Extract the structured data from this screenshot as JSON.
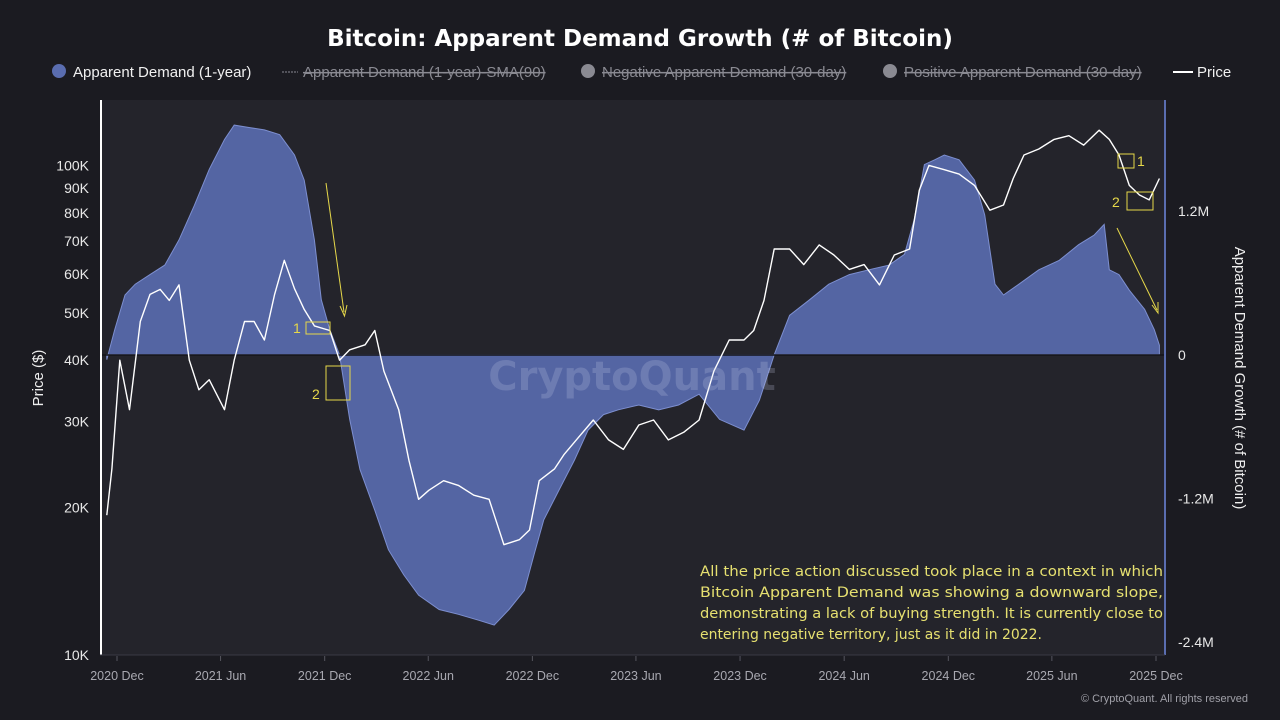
{
  "chart_data": {
    "type": "area+line",
    "title": "Bitcoin: Apparent Demand Growth (# of Bitcoin)",
    "legend": {
      "placement": "top",
      "items": [
        {
          "label": "Apparent Demand (1-year)",
          "color": "#5a6db0",
          "active": true,
          "marker": "dot"
        },
        {
          "label": "Apparent Demand (1-year)-SMA(90)",
          "color": "#8a8a92",
          "active": false,
          "marker": "dash"
        },
        {
          "label": "Negative Apparent Demand (30-day)",
          "color": "#8a8a92",
          "active": false,
          "marker": "dot"
        },
        {
          "label": "Positive Apparent Demand (30-day)",
          "color": "#8a8a92",
          "active": false,
          "marker": "dot"
        },
        {
          "label": "Price",
          "color": "#ffffff",
          "active": true,
          "marker": "line"
        }
      ]
    },
    "x_axis": {
      "type": "date",
      "ticks": [
        "2020 Dec",
        "2021 Jun",
        "2021 Dec",
        "2022 Jun",
        "2022 Dec",
        "2023 Jun",
        "2023 Dec",
        "2024 Jun",
        "2024 Dec",
        "2025 Jun",
        "2025 Dec"
      ],
      "tick_dates": [
        "2020-12-01",
        "2021-06-01",
        "2021-12-01",
        "2022-06-01",
        "2022-12-01",
        "2023-06-01",
        "2023-12-01",
        "2024-06-01",
        "2024-12-01",
        "2025-06-01",
        "2025-12-01"
      ]
    },
    "y_left": {
      "label": "Price ($)",
      "scale": "log",
      "range": [
        10000,
        136000
      ],
      "ticks": [
        {
          "v": 10000,
          "t": "10K"
        },
        {
          "v": 20000,
          "t": "20K"
        },
        {
          "v": 30000,
          "t": "30K"
        },
        {
          "v": 40000,
          "t": "40K"
        },
        {
          "v": 50000,
          "t": "50K"
        },
        {
          "v": 60000,
          "t": "60K"
        },
        {
          "v": 70000,
          "t": "70K"
        },
        {
          "v": 80000,
          "t": "80K"
        },
        {
          "v": 90000,
          "t": "90K"
        },
        {
          "v": 100000,
          "t": "100K"
        }
      ]
    },
    "y_right": {
      "label": "Apparent Demand Growth (# of Bitcoin)",
      "scale": "linear",
      "range": [
        -2510000,
        2130000
      ],
      "ticks": [
        {
          "v": 1200000,
          "t": "1.2M"
        },
        {
          "v": 0,
          "t": "0"
        },
        {
          "v": -1200000,
          "t": "-1.2M"
        },
        {
          "v": -2400000,
          "t": "-2.4M"
        }
      ]
    },
    "grid": false,
    "series": [
      {
        "name": "Apparent Demand (1-year)",
        "type": "area",
        "axis": "right",
        "color": "#5a6db0",
        "points": [
          [
            "2020-11-13",
            -40000
          ],
          [
            "2020-11-27",
            210000
          ],
          [
            "2020-12-15",
            500000
          ],
          [
            "2021-01-02",
            590000
          ],
          [
            "2021-01-28",
            670000
          ],
          [
            "2021-02-23",
            750000
          ],
          [
            "2021-03-20",
            960000
          ],
          [
            "2021-04-16",
            1250000
          ],
          [
            "2021-05-12",
            1550000
          ],
          [
            "2021-06-08",
            1800000
          ],
          [
            "2021-06-25",
            1920000
          ],
          [
            "2021-07-21",
            1900000
          ],
          [
            "2021-08-17",
            1880000
          ],
          [
            "2021-09-13",
            1840000
          ],
          [
            "2021-10-09",
            1670000
          ],
          [
            "2021-10-26",
            1460000
          ],
          [
            "2021-11-13",
            960000
          ],
          [
            "2021-11-25",
            460000
          ],
          [
            "2021-12-10",
            210000
          ],
          [
            "2021-12-27",
            0
          ],
          [
            "2022-01-14",
            -540000
          ],
          [
            "2022-02-01",
            -960000
          ],
          [
            "2022-02-27",
            -1300000
          ],
          [
            "2022-03-23",
            -1630000
          ],
          [
            "2022-04-19",
            -1840000
          ],
          [
            "2022-05-15",
            -2010000
          ],
          [
            "2022-06-20",
            -2130000
          ],
          [
            "2022-07-24",
            -2170000
          ],
          [
            "2022-08-29",
            -2220000
          ],
          [
            "2022-09-25",
            -2260000
          ],
          [
            "2022-10-21",
            -2130000
          ],
          [
            "2022-11-17",
            -1970000
          ],
          [
            "2022-12-04",
            -1670000
          ],
          [
            "2022-12-21",
            -1380000
          ],
          [
            "2023-01-17",
            -1130000
          ],
          [
            "2023-02-13",
            -880000
          ],
          [
            "2023-03-09",
            -630000
          ],
          [
            "2023-04-05",
            -500000
          ],
          [
            "2023-05-01",
            -460000
          ],
          [
            "2023-06-06",
            -420000
          ],
          [
            "2023-07-11",
            -460000
          ],
          [
            "2023-08-15",
            -420000
          ],
          [
            "2023-09-20",
            -330000
          ],
          [
            "2023-10-26",
            -540000
          ],
          [
            "2023-12-08",
            -630000
          ],
          [
            "2024-01-04",
            -380000
          ],
          [
            "2024-01-30",
            0
          ],
          [
            "2024-02-26",
            330000
          ],
          [
            "2024-04-01",
            460000
          ],
          [
            "2024-05-05",
            590000
          ],
          [
            "2024-06-10",
            670000
          ],
          [
            "2024-07-14",
            710000
          ],
          [
            "2024-08-19",
            750000
          ],
          [
            "2024-09-15",
            840000
          ],
          [
            "2024-10-02",
            1130000
          ],
          [
            "2024-10-20",
            1590000
          ],
          [
            "2024-11-07",
            1630000
          ],
          [
            "2024-11-24",
            1670000
          ],
          [
            "2024-12-20",
            1630000
          ],
          [
            "2025-01-16",
            1460000
          ],
          [
            "2025-02-03",
            1170000
          ],
          [
            "2025-02-21",
            590000
          ],
          [
            "2025-03-08",
            500000
          ],
          [
            "2025-04-04",
            590000
          ],
          [
            "2025-05-09",
            710000
          ],
          [
            "2025-06-14",
            790000
          ],
          [
            "2025-07-18",
            920000
          ],
          [
            "2025-08-14",
            1000000
          ],
          [
            "2025-09-01",
            1090000
          ],
          [
            "2025-09-10",
            710000
          ],
          [
            "2025-09-27",
            670000
          ],
          [
            "2025-10-15",
            540000
          ],
          [
            "2025-11-11",
            380000
          ],
          [
            "2025-11-28",
            210000
          ],
          [
            "2025-12-07",
            80000
          ]
        ]
      },
      {
        "name": "Price",
        "type": "line",
        "axis": "left",
        "color": "#ffffff",
        "points": [
          [
            "2020-11-13",
            19300
          ],
          [
            "2020-11-22",
            24000
          ],
          [
            "2020-12-06",
            40000
          ],
          [
            "2020-12-23",
            31700
          ],
          [
            "2021-01-11",
            48000
          ],
          [
            "2021-01-28",
            54500
          ],
          [
            "2021-02-15",
            55800
          ],
          [
            "2021-03-03",
            53000
          ],
          [
            "2021-03-20",
            57000
          ],
          [
            "2021-04-07",
            40000
          ],
          [
            "2021-04-24",
            34800
          ],
          [
            "2021-05-12",
            36500
          ],
          [
            "2021-06-08",
            31700
          ],
          [
            "2021-06-25",
            40000
          ],
          [
            "2021-07-13",
            48000
          ],
          [
            "2021-07-30",
            48000
          ],
          [
            "2021-08-17",
            44000
          ],
          [
            "2021-09-04",
            54500
          ],
          [
            "2021-09-21",
            64000
          ],
          [
            "2021-10-09",
            56000
          ],
          [
            "2021-10-26",
            50800
          ],
          [
            "2021-11-13",
            47000
          ],
          [
            "2021-12-10",
            46000
          ],
          [
            "2021-12-27",
            40000
          ],
          [
            "2022-01-14",
            42000
          ],
          [
            "2022-02-10",
            43000
          ],
          [
            "2022-02-27",
            46000
          ],
          [
            "2022-03-15",
            38000
          ],
          [
            "2022-04-10",
            31700
          ],
          [
            "2022-04-28",
            25000
          ],
          [
            "2022-05-15",
            20800
          ],
          [
            "2022-06-02",
            21700
          ],
          [
            "2022-06-28",
            22700
          ],
          [
            "2022-07-24",
            22200
          ],
          [
            "2022-08-20",
            21200
          ],
          [
            "2022-09-16",
            20800
          ],
          [
            "2022-10-12",
            16800
          ],
          [
            "2022-11-08",
            17200
          ],
          [
            "2022-11-26",
            18000
          ],
          [
            "2022-12-13",
            22700
          ],
          [
            "2023-01-09",
            24000
          ],
          [
            "2023-01-26",
            25700
          ],
          [
            "2023-02-22",
            28000
          ],
          [
            "2023-03-18",
            30200
          ],
          [
            "2023-04-14",
            27500
          ],
          [
            "2023-05-10",
            26300
          ],
          [
            "2023-06-06",
            29500
          ],
          [
            "2023-07-02",
            30200
          ],
          [
            "2023-07-28",
            27500
          ],
          [
            "2023-08-24",
            28500
          ],
          [
            "2023-09-20",
            30200
          ],
          [
            "2023-10-16",
            38000
          ],
          [
            "2023-11-12",
            44000
          ],
          [
            "2023-12-08",
            44000
          ],
          [
            "2023-12-25",
            46000
          ],
          [
            "2024-01-12",
            53000
          ],
          [
            "2024-01-30",
            67500
          ],
          [
            "2024-02-26",
            67500
          ],
          [
            "2024-03-22",
            62700
          ],
          [
            "2024-04-18",
            68800
          ],
          [
            "2024-05-14",
            65600
          ],
          [
            "2024-06-10",
            61300
          ],
          [
            "2024-07-06",
            62700
          ],
          [
            "2024-08-02",
            57000
          ],
          [
            "2024-08-28",
            65600
          ],
          [
            "2024-09-24",
            67500
          ],
          [
            "2024-10-11",
            89000
          ],
          [
            "2024-10-28",
            100000
          ],
          [
            "2024-11-24",
            98000
          ],
          [
            "2024-12-20",
            96000
          ],
          [
            "2025-01-16",
            91000
          ],
          [
            "2025-02-12",
            81000
          ],
          [
            "2025-03-08",
            83000
          ],
          [
            "2025-03-25",
            94000
          ],
          [
            "2025-04-13",
            105000
          ],
          [
            "2025-05-09",
            108000
          ],
          [
            "2025-06-05",
            113000
          ],
          [
            "2025-07-01",
            115000
          ],
          [
            "2025-07-27",
            110000
          ],
          [
            "2025-08-23",
            118000
          ],
          [
            "2025-09-10",
            113000
          ],
          [
            "2025-09-27",
            105000
          ],
          [
            "2025-10-15",
            91000
          ],
          [
            "2025-11-02",
            87000
          ],
          [
            "2025-11-19",
            85000
          ],
          [
            "2025-12-07",
            94000
          ]
        ]
      }
    ],
    "annotations": {
      "labels": [
        "1",
        "2",
        "1",
        "2"
      ],
      "note": [
        "All the price action discussed took place in a context in which",
        "Bitcoin Apparent Demand was showing a downward slope,",
        "demonstrating a lack of buying strength. It is currently close to",
        "entering negative territory, just as it did in 2022."
      ],
      "color": "#e6d84a"
    },
    "watermark": "CryptoQuant",
    "copyright": "© CryptoQuant. All rights reserved"
  }
}
